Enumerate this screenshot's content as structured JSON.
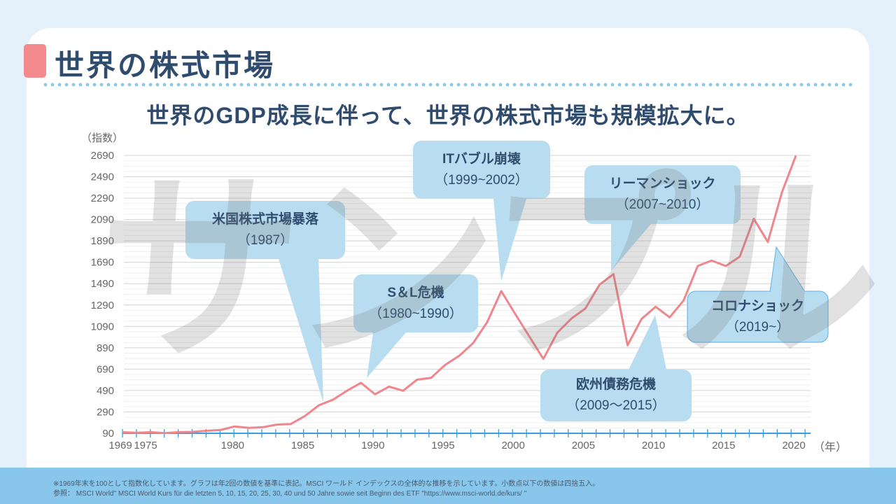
{
  "header": {
    "title": "世界の株式市場",
    "subtitle": "世界のGDP成長に伴って、世界の株式市場も規模拡大に。"
  },
  "watermark": "サンプル",
  "colors": {
    "line": "#f0868c",
    "axis": "#3a9ee0",
    "callout": "#b9ddf0",
    "title": "#2f4c6e",
    "accent": "#f4898e",
    "footer": "#89c6eb"
  },
  "chart_data": {
    "type": "line",
    "ylabel": "（指数）",
    "xlabel": "（年）",
    "ylim": [
      90,
      2690
    ],
    "yticks": [
      90,
      290,
      490,
      690,
      890,
      1090,
      1290,
      1490,
      1690,
      1890,
      2090,
      2290,
      2490,
      2690
    ],
    "grid": true,
    "categories": [
      "1969",
      "1975",
      "",
      "",
      "",
      "",
      "",
      "",
      "1980",
      "",
      "",
      "",
      "",
      "1985",
      "",
      "",
      "",
      "",
      "1990",
      "",
      "",
      "",
      "",
      "1995",
      "",
      "",
      "",
      "",
      "2000",
      "",
      "",
      "",
      "",
      "2005",
      "",
      "",
      "",
      "",
      "2010",
      "",
      "",
      "",
      "",
      "2015",
      "",
      "",
      "",
      "",
      "2020"
    ],
    "values": [
      100,
      95,
      101,
      92,
      101,
      103,
      114,
      121,
      154,
      141,
      147,
      171,
      177,
      252,
      352,
      404,
      488,
      562,
      455,
      527,
      488,
      592,
      609,
      730,
      815,
      935,
      1131,
      1420,
      1205,
      996,
      786,
      1033,
      1164,
      1258,
      1481,
      1579,
      913,
      1160,
      1274,
      1175,
      1333,
      1655,
      1706,
      1655,
      1743,
      2097,
      1880,
      2343,
      2688
    ]
  },
  "callouts": [
    {
      "title": "米国株式市場暴落",
      "period": "（1987）"
    },
    {
      "title": "S＆L危機",
      "period": "（1980~1990）"
    },
    {
      "title": "ITバブル崩壊",
      "period": "（1999~2002）"
    },
    {
      "title": "リーマンショック",
      "period": "（2007~2010）"
    },
    {
      "title": "欧州債務危機",
      "period": "（2009〜2015）"
    },
    {
      "title": "コロナショック",
      "period": "（2019~）"
    }
  ],
  "footer": {
    "note": "※1969年末を100として指数化しています。グラフは年2回の数値を基準に表記。MSCI ワールド インデックスの全体的な推移を示しています。小数点以下の数値は四捨五入。",
    "source": "参照： MSCI World\" MSCI World Kurs für die letzten 5, 10, 15, 20, 25, 30, 40 und 50 Jahre sowie seit Beginn des ETF \"https://www.msci-world.de/kurs/ \""
  }
}
